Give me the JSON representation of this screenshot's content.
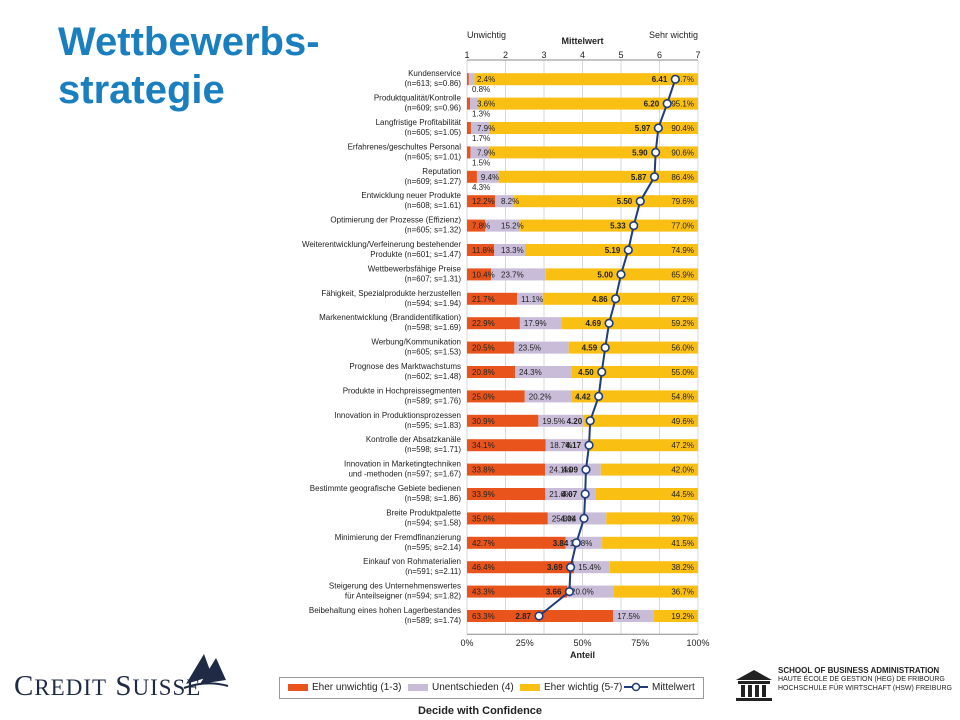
{
  "slide": {
    "title_line1": "Wettbewerbs-",
    "title_line2": "strategie",
    "tagline": "Decide with Confidence",
    "left_logo_text": "Credit Suisse",
    "school_lines": [
      "SCHOOL OF BUSINESS ADMINISTRATION",
      "HAUTE ÉCOLE DE GESTION (HEG) DE FRIBOURG",
      "HOCHSCHULE FÜR WIRTSCHAFT (HSW) FREIBURG"
    ]
  },
  "chart_data": {
    "type": "bar",
    "stacked": true,
    "orientation": "horizontal",
    "top_axis": {
      "title": "Mittelwert",
      "left_label": "Unwichtig",
      "right_label": "Sehr wichtig",
      "ticks": [
        "1",
        "2",
        "3",
        "4",
        "5",
        "6",
        "7"
      ],
      "range": [
        1,
        7
      ]
    },
    "bottom_axis": {
      "title": "Anteil",
      "ticks": [
        "0%",
        "25%",
        "50%",
        "75%",
        "100%"
      ],
      "range": [
        0,
        100
      ]
    },
    "colors": {
      "unwichtig": "#e8541b",
      "unentschieden": "#c8bcd8",
      "wichtig": "#f9bf13",
      "mittelwert": "#1f3d7a"
    },
    "legend": [
      {
        "key": "unwichtig",
        "label": "Eher unwichtig (1-3)"
      },
      {
        "key": "unentschieden",
        "label": "Unentschieden (4)"
      },
      {
        "key": "wichtig",
        "label": "Eher wichtig (5-7)"
      },
      {
        "key": "mittelwert",
        "label": "Mittelwert"
      }
    ],
    "rows": [
      {
        "label": [
          "Kundenservice",
          "(n=613; s=0.86)"
        ],
        "un": 0.8,
        "ue": 2.4,
        "wi": 96.7,
        "mean": 6.41,
        "un_l": "0.8%",
        "ue_l": "2.4%",
        "wi_l": "96.7%",
        "mean_l": "6.41"
      },
      {
        "label": [
          "Produktqualität/Kontrolle",
          "(n=609; s=0.96)"
        ],
        "un": 1.3,
        "ue": 3.6,
        "wi": 95.1,
        "mean": 6.2,
        "un_l": "1.3%",
        "ue_l": "3.6%",
        "wi_l": "95.1%",
        "mean_l": "6.20"
      },
      {
        "label": [
          "Langfristige Profitabilität",
          "(n=605; s=1.05)"
        ],
        "un": 1.7,
        "ue": 7.9,
        "wi": 90.4,
        "mean": 5.97,
        "un_l": "1.7%",
        "ue_l": "7.9%",
        "wi_l": "90.4%",
        "mean_l": "5.97"
      },
      {
        "label": [
          "Erfahrenes/geschultes Personal",
          "(n=605; s=1.01)"
        ],
        "un": 1.5,
        "ue": 7.9,
        "wi": 90.6,
        "mean": 5.9,
        "un_l": "1.5%",
        "ue_l": "7.9%",
        "wi_l": "90.6%",
        "mean_l": "5.90"
      },
      {
        "label": [
          "Reputation",
          "(n=609; s=1.27)"
        ],
        "un": 4.3,
        "ue": 9.4,
        "wi": 86.4,
        "mean": 5.87,
        "un_l": "4.3%",
        "ue_l": "9.4%",
        "wi_l": "86.4%",
        "mean_l": "5.87"
      },
      {
        "label": [
          "Entwicklung neuer Produkte",
          "(n=608; s=1.61)"
        ],
        "un": 12.2,
        "ue": 8.2,
        "wi": 79.6,
        "mean": 5.5,
        "un_l": "12.2%",
        "ue_l": "8.2%",
        "wi_l": "79.6%",
        "mean_l": "5.50"
      },
      {
        "label": [
          "Optimierung der Prozesse (Effizienz)",
          "(n=605; s=1.32)"
        ],
        "un": 7.8,
        "ue": 15.2,
        "wi": 77.0,
        "mean": 5.33,
        "un_l": "7.8%",
        "ue_l": "15.2%",
        "wi_l": "77.0%",
        "mean_l": "5.33"
      },
      {
        "label": [
          "Weiterentwicklung/Verfeinerung bestehender",
          "Produkte (n=601; s=1.47)"
        ],
        "un": 11.8,
        "ue": 13.3,
        "wi": 74.9,
        "mean": 5.19,
        "un_l": "11.8%",
        "ue_l": "13.3%",
        "wi_l": "74.9%",
        "mean_l": "5.19"
      },
      {
        "label": [
          "Wettbewerbsfähige Preise",
          "(n=607; s=1.31)"
        ],
        "un": 10.4,
        "ue": 23.7,
        "wi": 65.9,
        "mean": 5.0,
        "un_l": "10.4%",
        "ue_l": "23.7%",
        "wi_l": "65.9%",
        "mean_l": "5.00"
      },
      {
        "label": [
          "Fähigkeit, Spezialprodukte herzustellen",
          "(n=594; s=1.94)"
        ],
        "un": 21.7,
        "ue": 11.1,
        "wi": 67.2,
        "mean": 4.86,
        "un_l": "21.7%",
        "ue_l": "11.1%",
        "wi_l": "67.2%",
        "mean_l": "4.86"
      },
      {
        "label": [
          "Markenentwicklung (Brandidentifikation)",
          "(n=598; s=1.69)"
        ],
        "un": 22.9,
        "ue": 17.9,
        "wi": 59.2,
        "mean": 4.69,
        "un_l": "22.9%",
        "ue_l": "17.9%",
        "wi_l": "59.2%",
        "mean_l": "4.69"
      },
      {
        "label": [
          "Werbung/Kommunikation",
          "(n=605; s=1.53)"
        ],
        "un": 20.5,
        "ue": 23.5,
        "wi": 56.0,
        "mean": 4.59,
        "un_l": "20.5%",
        "ue_l": "23.5%",
        "wi_l": "56.0%",
        "mean_l": "4.59"
      },
      {
        "label": [
          "Prognose des Marktwachstums",
          "(n=602; s=1.48)"
        ],
        "un": 20.8,
        "ue": 24.3,
        "wi": 55.0,
        "mean": 4.5,
        "un_l": "20.8%",
        "ue_l": "24.3%",
        "wi_l": "55.0%",
        "mean_l": "4.50"
      },
      {
        "label": [
          "Produkte in Hochpreissegmenten",
          "(n=589; s=1.76)"
        ],
        "un": 25.0,
        "ue": 20.2,
        "wi": 54.8,
        "mean": 4.42,
        "un_l": "25.0%",
        "ue_l": "20.2%",
        "wi_l": "54.8%",
        "mean_l": "4.42"
      },
      {
        "label": [
          "Innovation in Produktionsprozessen",
          "(n=595; s=1.83)"
        ],
        "un": 30.9,
        "ue": 19.5,
        "wi": 49.6,
        "mean": 4.2,
        "un_l": "30.9%",
        "ue_l": "19.5%",
        "wi_l": "49.6%",
        "mean_l": "4.20"
      },
      {
        "label": [
          "Kontrolle der Absatzkanäle",
          "(n=598; s=1.71)"
        ],
        "un": 34.1,
        "ue": 18.7,
        "wi": 47.2,
        "mean": 4.17,
        "un_l": "34.1%",
        "ue_l": "18.7%",
        "wi_l": "47.2%",
        "mean_l": "4.17"
      },
      {
        "label": [
          "Innovation in Marketingtechniken",
          "und -methoden (n=597; s=1.67)"
        ],
        "un": 33.8,
        "ue": 24.1,
        "wi": 42.0,
        "mean": 4.09,
        "un_l": "33.8%",
        "ue_l": "24.1%",
        "wi_l": "42.0%",
        "mean_l": "4.09"
      },
      {
        "label": [
          "Bestimmte geografische Gebiete bedienen",
          "(n=598; s=1.86)"
        ],
        "un": 33.9,
        "ue": 21.6,
        "wi": 44.5,
        "mean": 4.07,
        "un_l": "33.9%",
        "ue_l": "21.6%",
        "wi_l": "44.5%",
        "mean_l": "4.07"
      },
      {
        "label": [
          "Breite Produktpalette",
          "(n=594; s=1.58)"
        ],
        "un": 35.0,
        "ue": 25.3,
        "wi": 39.7,
        "mean": 4.04,
        "un_l": "35.0%",
        "ue_l": "25.3%",
        "wi_l": "39.7%",
        "mean_l": "4.04"
      },
      {
        "label": [
          "Minimierung der Fremdfinanzierung",
          "(n=595; s=2.14)"
        ],
        "un": 42.7,
        "ue": 15.8,
        "wi": 41.5,
        "mean": 3.84,
        "un_l": "42.7%",
        "ue_l": "15.8%",
        "wi_l": "41.5%",
        "mean_l": "3.84"
      },
      {
        "label": [
          "Einkauf von Rohmaterialien",
          "(n=591; s=2.11)"
        ],
        "un": 46.4,
        "ue": 15.4,
        "wi": 38.2,
        "mean": 3.69,
        "un_l": "46.4%",
        "ue_l": "15.4%",
        "wi_l": "38.2%",
        "mean_l": "3.69"
      },
      {
        "label": [
          "Steigerung des Unternehmenswertes",
          "für Anteilseigner (n=594; s=1.82)"
        ],
        "un": 43.3,
        "ue": 20.0,
        "wi": 36.7,
        "mean": 3.66,
        "un_l": "43.3%",
        "ue_l": "20.0%",
        "wi_l": "36.7%",
        "mean_l": "3.66"
      },
      {
        "label": [
          "Beibehaltung eines hohen Lagerbestandes",
          "(n=589; s=1.74)"
        ],
        "un": 63.3,
        "ue": 17.5,
        "wi": 19.2,
        "mean": 2.87,
        "un_l": "63.3%",
        "ue_l": "17.5%",
        "wi_l": "19.2%",
        "mean_l": "2.87"
      }
    ]
  }
}
